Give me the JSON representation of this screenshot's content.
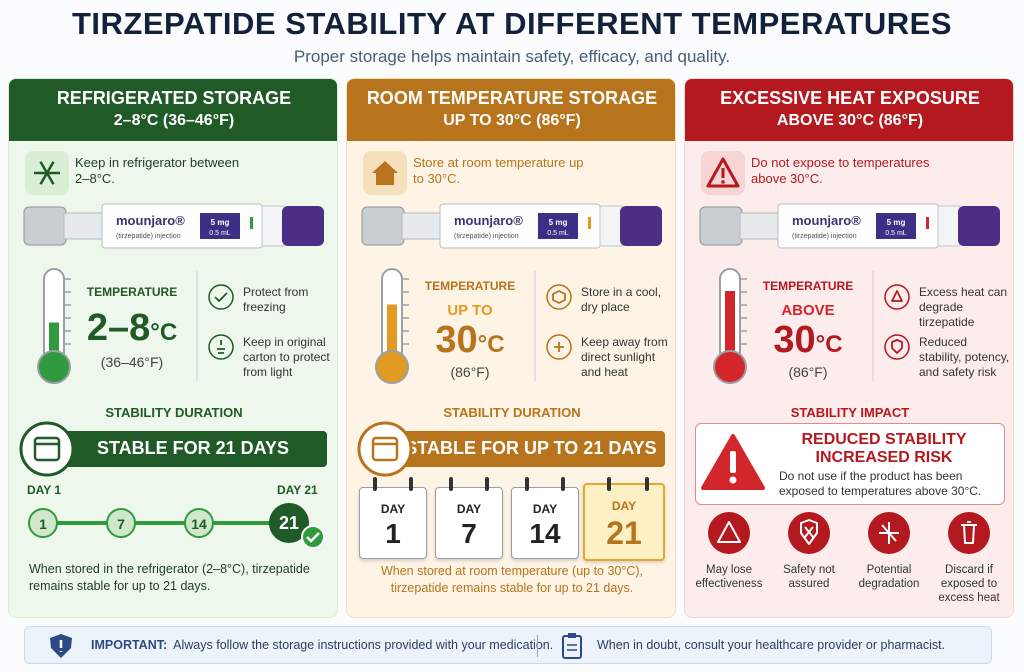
{
  "header": {
    "title": "TIRZEPATIDE STABILITY AT DIFFERENT TEMPERATURES",
    "subtitle": "Proper storage helps maintain safety, efficacy, and quality."
  },
  "pen": {
    "brand": "mounjaro®",
    "generic": "(tirzepatide) injection",
    "dose": "5 mg",
    "volume": "0.5 mL"
  },
  "panels": [
    {
      "heading": "REFRIGERATED STORAGE",
      "subheading": "2–8°C (36–46°F)",
      "instruction": "Keep in refrigerator between 2–8°C.",
      "temperature": {
        "label": "TEMPERATURE",
        "value": "2–8",
        "unit": "°C",
        "alt": "(36–46°F)"
      },
      "tips": [
        "Protect from freezing",
        "Keep in original carton to protect from light"
      ],
      "section_title": "STABILITY DURATION",
      "banner": "STABLE FOR 21 DAYS",
      "timeline": {
        "start_label": "DAY 1",
        "end_label": "DAY 21",
        "days": [
          "1",
          "7",
          "14",
          "21"
        ]
      },
      "note": "When stored in the refrigerator (2–8°C), tirzepatide remains stable for up to 21 days."
    },
    {
      "heading": "ROOM TEMPERATURE STORAGE",
      "subheading": "UP TO 30°C (86°F)",
      "instruction": "Store at room temperature up to 30°C.",
      "temperature": {
        "label": "TEMPERATURE",
        "qualifier": "UP TO",
        "value": "30",
        "unit": "°C",
        "alt": "(86°F)"
      },
      "tips": [
        "Store in a cool, dry place",
        "Keep away from direct sunlight and heat"
      ],
      "section_title": "STABILITY DURATION",
      "banner": "STABLE FOR UP TO 21 DAYS",
      "calendars": {
        "day_label": "DAY",
        "days": [
          "1",
          "7",
          "14",
          "21"
        ]
      },
      "note": "When stored at room temperature (up to 30°C), tirzepatide remains stable for up to 21 days."
    },
    {
      "heading": "EXCESSIVE HEAT EXPOSURE",
      "subheading": "ABOVE 30°C (86°F)",
      "instruction": "Do not expose to temperatures above 30°C.",
      "temperature": {
        "label": "TEMPERATURE",
        "qualifier": "ABOVE",
        "value": "30",
        "unit": "°C",
        "alt": "(86°F)"
      },
      "tips": [
        "Excess heat can degrade tirzepatide",
        "Reduced stability, potency, and safety risk"
      ],
      "section_title": "STABILITY IMPACT",
      "warning": {
        "title": "REDUCED STABILITY",
        "subtitle": "INCREASED RISK",
        "text": "Do not use if the product has been exposed to temperatures above 30°C."
      },
      "risks": [
        "May lose effectiveness",
        "Safety not assured",
        "Potential degradation",
        "Discard if exposed to excess heat"
      ]
    }
  ],
  "footer": {
    "important_label": "IMPORTANT:",
    "important_text": "Always follow the storage instructions provided with your medication.",
    "advice": "When in doubt, consult your healthcare provider or pharmacist."
  }
}
